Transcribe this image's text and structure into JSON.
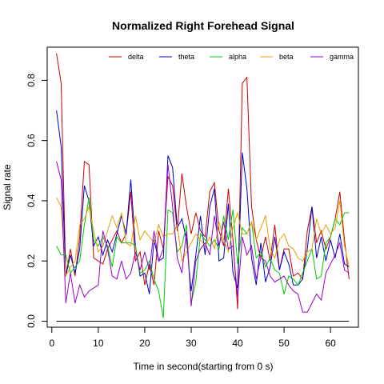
{
  "chart_data": {
    "type": "line",
    "title": "Normalized Right Forehead Signal",
    "xlabel": "Time in second(starting from 0 s)",
    "ylabel": "Signal rate",
    "xlim": [
      -1,
      66
    ],
    "ylim": [
      -0.02,
      0.91
    ],
    "xticks": [
      0,
      10,
      20,
      30,
      40,
      50,
      60
    ],
    "yticks": [
      0.0,
      0.2,
      0.4,
      0.6,
      0.8
    ],
    "legend_position": "top",
    "grid": false,
    "x": [
      1,
      2,
      3,
      4,
      5,
      6,
      7,
      8,
      9,
      10,
      11,
      12,
      13,
      14,
      15,
      16,
      17,
      18,
      19,
      20,
      21,
      22,
      23,
      24,
      25,
      26,
      27,
      28,
      29,
      30,
      31,
      32,
      33,
      34,
      35,
      36,
      37,
      38,
      39,
      40,
      41,
      42,
      43,
      44,
      45,
      46,
      47,
      48,
      49,
      50,
      51,
      52,
      53,
      54,
      55,
      56,
      57,
      58,
      59,
      60,
      61,
      62,
      63,
      64
    ],
    "series": [
      {
        "name": "delta",
        "color": "#CC0000",
        "values": [
          0.89,
          0.79,
          0.15,
          0.24,
          0.15,
          0.28,
          0.53,
          0.52,
          0.21,
          0.2,
          0.19,
          0.24,
          0.27,
          0.3,
          0.26,
          0.29,
          0.43,
          0.2,
          0.23,
          0.12,
          0.19,
          0.12,
          0.3,
          0.24,
          0.48,
          0.45,
          0.3,
          0.49,
          0.38,
          0.29,
          0.36,
          0.3,
          0.28,
          0.43,
          0.46,
          0.3,
          0.25,
          0.44,
          0.27,
          0.04,
          0.79,
          0.81,
          0.38,
          0.27,
          0.21,
          0.28,
          0.2,
          0.32,
          0.17,
          0.24,
          0.24,
          0.15,
          0.16,
          0.14,
          0.3,
          0.38,
          0.26,
          0.3,
          0.24,
          0.28,
          0.34,
          0.43,
          0.27,
          0.14
        ]
      },
      {
        "name": "theta",
        "color": "#0000CC",
        "values": [
          0.7,
          0.58,
          0.15,
          0.22,
          0.16,
          0.24,
          0.45,
          0.4,
          0.25,
          0.28,
          0.22,
          0.27,
          0.23,
          0.29,
          0.35,
          0.29,
          0.47,
          0.25,
          0.15,
          0.16,
          0.09,
          0.27,
          0.2,
          0.21,
          0.55,
          0.51,
          0.31,
          0.34,
          0.27,
          0.1,
          0.22,
          0.35,
          0.22,
          0.38,
          0.44,
          0.2,
          0.21,
          0.39,
          0.16,
          0.11,
          0.56,
          0.44,
          0.21,
          0.12,
          0.26,
          0.13,
          0.18,
          0.28,
          0.17,
          0.23,
          0.19,
          0.12,
          0.12,
          0.14,
          0.24,
          0.38,
          0.21,
          0.28,
          0.2,
          0.27,
          0.21,
          0.29,
          0.19,
          0.18
        ]
      },
      {
        "name": "alpha",
        "color": "#00CC00",
        "values": [
          0.25,
          0.22,
          0.22,
          0.16,
          0.18,
          0.2,
          0.32,
          0.41,
          0.27,
          0.25,
          0.28,
          0.25,
          0.18,
          0.28,
          0.26,
          0.26,
          0.26,
          0.25,
          0.16,
          0.17,
          0.2,
          0.14,
          0.1,
          0.01,
          0.37,
          0.36,
          0.23,
          0.25,
          0.32,
          0.06,
          0.13,
          0.29,
          0.27,
          0.25,
          0.27,
          0.24,
          0.35,
          0.27,
          0.37,
          0.19,
          0.31,
          0.29,
          0.33,
          0.21,
          0.23,
          0.18,
          0.21,
          0.17,
          0.16,
          0.09,
          0.15,
          0.14,
          0.12,
          0.16,
          0.2,
          0.24,
          0.14,
          0.15,
          0.26,
          0.28,
          0.34,
          0.32,
          0.36,
          0.36
        ]
      },
      {
        "name": "beta",
        "color": "#E6A000",
        "values": [
          0.41,
          0.38,
          0.15,
          0.18,
          0.2,
          0.32,
          0.34,
          0.38,
          0.3,
          0.23,
          0.25,
          0.3,
          0.35,
          0.31,
          0.36,
          0.26,
          0.25,
          0.35,
          0.27,
          0.3,
          0.28,
          0.26,
          0.32,
          0.28,
          0.29,
          0.29,
          0.32,
          0.2,
          0.23,
          0.26,
          0.29,
          0.27,
          0.25,
          0.28,
          0.24,
          0.33,
          0.27,
          0.23,
          0.31,
          0.36,
          0.29,
          0.29,
          0.33,
          0.27,
          0.31,
          0.35,
          0.24,
          0.21,
          0.27,
          0.29,
          0.25,
          0.24,
          0.21,
          0.2,
          0.23,
          0.24,
          0.34,
          0.29,
          0.32,
          0.29,
          0.31,
          0.4,
          0.25,
          0.18
        ]
      },
      {
        "name": "gamma",
        "color": "#9900CC",
        "values": [
          0.53,
          0.47,
          0.06,
          0.16,
          0.06,
          0.12,
          0.08,
          0.1,
          0.11,
          0.12,
          0.3,
          0.24,
          0.15,
          0.14,
          0.2,
          0.14,
          0.16,
          0.23,
          0.17,
          0.23,
          0.17,
          0.3,
          0.2,
          0.24,
          0.52,
          0.38,
          0.21,
          0.16,
          0.3,
          0.05,
          0.2,
          0.24,
          0.26,
          0.22,
          0.35,
          0.25,
          0.33,
          0.24,
          0.25,
          0.08,
          0.28,
          0.22,
          0.25,
          0.14,
          0.21,
          0.2,
          0.15,
          0.13,
          0.14,
          0.15,
          0.12,
          0.1,
          0.09,
          0.03,
          0.03,
          0.06,
          0.09,
          0.07,
          0.16,
          0.19,
          0.22,
          0.26,
          0.17,
          0.16
        ]
      }
    ],
    "baseline": {
      "color": "#000000",
      "y": 0.0,
      "x_start": 1,
      "x_end": 64
    }
  }
}
